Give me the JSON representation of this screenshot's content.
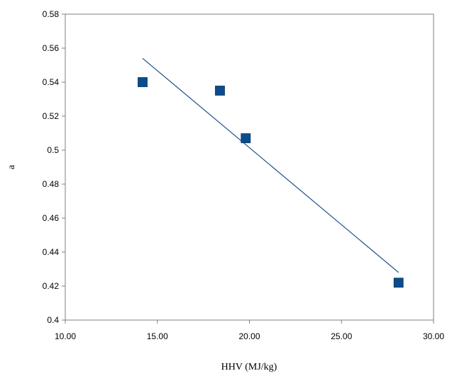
{
  "chart_data": {
    "type": "scatter",
    "xlabel": "HHV (MJ/kg)",
    "ylabel": "a",
    "xlim": [
      10,
      30
    ],
    "ylim": [
      0.4,
      0.58
    ],
    "x_ticks": [
      10,
      15,
      20,
      25,
      30
    ],
    "x_tick_labels": [
      "10.00",
      "15.00",
      "20.00",
      "25.00",
      "30.00"
    ],
    "y_ticks": [
      0.4,
      0.42,
      0.44,
      0.46,
      0.48,
      0.5,
      0.52,
      0.54,
      0.56,
      0.58
    ],
    "y_tick_labels": [
      "0.4",
      "0.42",
      "0.44",
      "0.46",
      "0.48",
      "0.5",
      "0.52",
      "0.54",
      "0.56",
      "0.58"
    ],
    "grid": false,
    "legend": "none",
    "series": [
      {
        "points": [
          {
            "x": 14.2,
            "y": 0.54
          },
          {
            "x": 18.4,
            "y": 0.535
          },
          {
            "x": 19.8,
            "y": 0.507
          },
          {
            "x": 28.1,
            "y": 0.422
          }
        ],
        "marker": "square",
        "color": "#0B4D8C"
      }
    ],
    "trendline": {
      "type": "linear",
      "x": [
        14.2,
        28.1
      ],
      "y": [
        0.554,
        0.428
      ],
      "color": "#1F4E8C"
    }
  }
}
